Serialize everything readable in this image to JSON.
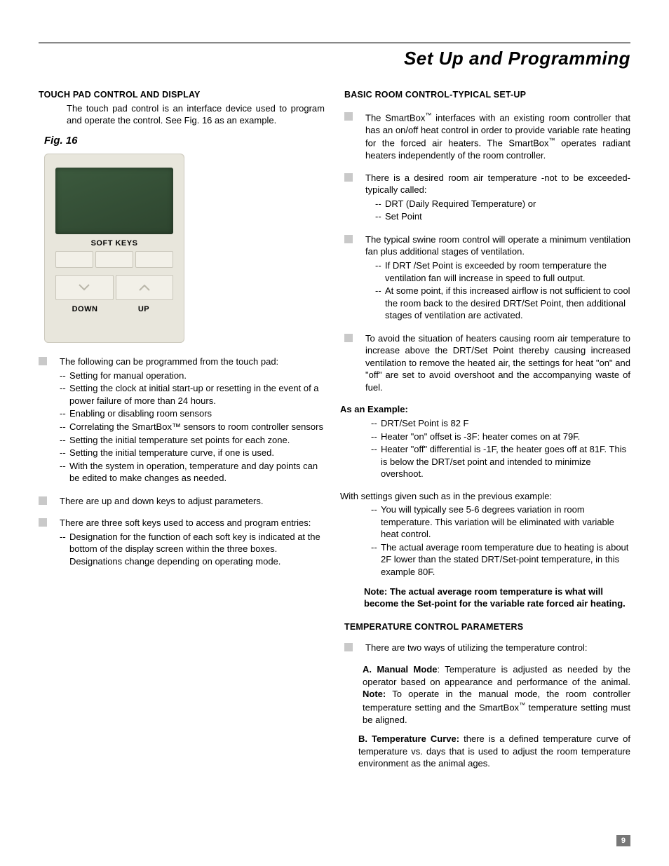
{
  "page": {
    "title": "Set Up and Programming",
    "number": "9"
  },
  "left": {
    "heading": "TOUCH PAD CONTROL AND DISPLAY",
    "intro": "The touch pad control is an interface device used to program and operate the control. See Fig. 16 as an example.",
    "fig_label": "Fig. 16",
    "touchpad": {
      "softkeys_label": "SOFT KEYS",
      "down_label": "DOWN",
      "up_label": "UP"
    },
    "bullets": [
      {
        "lead": "The following can be programmed from the touch pad:",
        "items": [
          " Setting for manual operation.",
          "Setting the clock at initial start-up or resetting in the event of a power failure of more than 24 hours.",
          " Enabling or disabling room sensors",
          " Correlating the SmartBox™ sensors to room controller sensors",
          "Setting the initial temperature set points for each zone.",
          "Setting the initial temperature curve, if one is used.",
          "With the system in operation, temperature and day points can be edited to make changes as needed."
        ]
      },
      {
        "lead": "There are up and down keys to adjust parameters."
      },
      {
        "lead": "There are three soft keys used to access and program entries:",
        "items": [
          "Designation for the function of each soft key is indicated at the bottom of the display screen within the three boxes. Designations change depending on operating mode."
        ]
      }
    ]
  },
  "right": {
    "heading": "BASIC ROOM CONTROL-TYPICAL SET-UP",
    "bullets": [
      {
        "html": "The SmartBox<sup class='tm'>™</sup> interfaces with an existing room controller that has an on/off heat control in order to provide variable rate heating for the forced air heaters. The SmartBox<sup class='tm'>™</sup> operates radiant heaters independently of the room controller."
      },
      {
        "lead": "There is a desired room air temperature -not to be exceeded- typically called:",
        "items": [
          "DRT (Daily Required Temperature) or",
          "Set Point"
        ]
      },
      {
        "lead": "The typical swine room control will operate a minimum ventilation fan plus additional stages of ventilation.",
        "items": [
          "If DRT /Set Point is exceeded by room temperature the ventilation fan will increase in speed to full output.",
          "At some point, if this increased airflow is not sufficient to cool the room back to the desired DRT/Set Point, then additional stages of ventilation are activated."
        ]
      },
      {
        "lead": "To avoid the situation of heaters causing room air temperature to increase above the DRT/Set Point thereby causing increased ventilation to remove the heated air, the settings for heat \"on\" and \"off\" are set to avoid overshoot and the accompanying waste of fuel."
      }
    ],
    "example_head": "As an Example:",
    "example_items": [
      "DRT/Set Point is 82 F",
      "Heater \"on\" offset is -3F: heater comes on at 79F.",
      "Heater \"off\" differential is -1F, the heater goes off at 81F. This is below the DRT/set point and intended to minimize overshoot."
    ],
    "settings_lead": "With settings given such as in the previous example:",
    "settings_items": [
      "You will typically see 5-6 degrees variation in room temperature. This variation will be eliminated with variable heat control.",
      "The actual average room temperature due to heating is about 2F lower than the stated DRT/Set-point temperature, in this example 80F."
    ],
    "note": "Note: The actual average room temperature is what will become the Set-point for the variable rate forced air heating.",
    "temp_heading": "TEMPERATURE CONTROL PARAMETERS",
    "temp_bullet": "There are two ways of utilizing the temperature control:",
    "mode_a_label": "A. Manual Mode",
    "mode_a_text": ": Temperature is adjusted as needed by the operator based on appearance and performance of the animal. ",
    "mode_a_note_label": "Note:",
    "mode_a_note_text": " To operate in the manual mode, the room controller temperature setting and the SmartBox",
    "mode_a_tail": " temperature setting must be aligned.",
    "mode_b_label": "B. Temperature Curve:",
    "mode_b_text": " there is a defined temperature curve of temperature vs. days that is used to adjust the room temperature environment as  the animal ages."
  }
}
